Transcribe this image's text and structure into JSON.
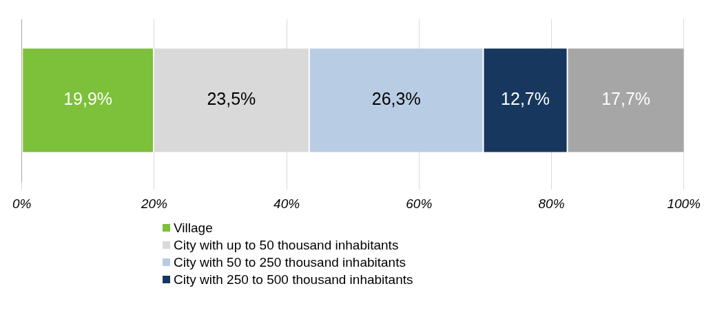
{
  "chart_data": {
    "type": "bar",
    "orientation": "horizontal",
    "stacked": true,
    "categories": [
      null
    ],
    "series": [
      {
        "name": "Village",
        "color": "#7dc03a",
        "values": [
          19.9
        ],
        "value_labels": [
          "19,9%"
        ]
      },
      {
        "name": "City with up to 50 thousand inhabitants",
        "color": "#d9d9d9",
        "values": [
          23.5
        ],
        "value_labels": [
          "23,5%"
        ]
      },
      {
        "name": "City with 50 to 250 thousand inhabitants",
        "color": "#b8cce4",
        "values": [
          26.3
        ],
        "value_labels": [
          "26,3%"
        ]
      },
      {
        "name": "City with 250 to 500 thousand inhabitants",
        "color": "#17375e",
        "values": [
          12.7
        ],
        "value_labels": [
          "12,7%"
        ]
      },
      {
        "color": "#a6a6a6",
        "values": [
          17.7
        ],
        "value_labels": [
          "17,7%"
        ]
      }
    ],
    "xlim": [
      0,
      100
    ],
    "xticks": [
      {
        "value": 0,
        "label": "0%"
      },
      {
        "value": 20,
        "label": "20%"
      },
      {
        "value": 40,
        "label": "40%"
      },
      {
        "value": 60,
        "label": "60%"
      },
      {
        "value": 80,
        "label": "80%"
      },
      {
        "value": 100,
        "label": "100%"
      }
    ],
    "grid": "x",
    "legend": "bottom"
  }
}
